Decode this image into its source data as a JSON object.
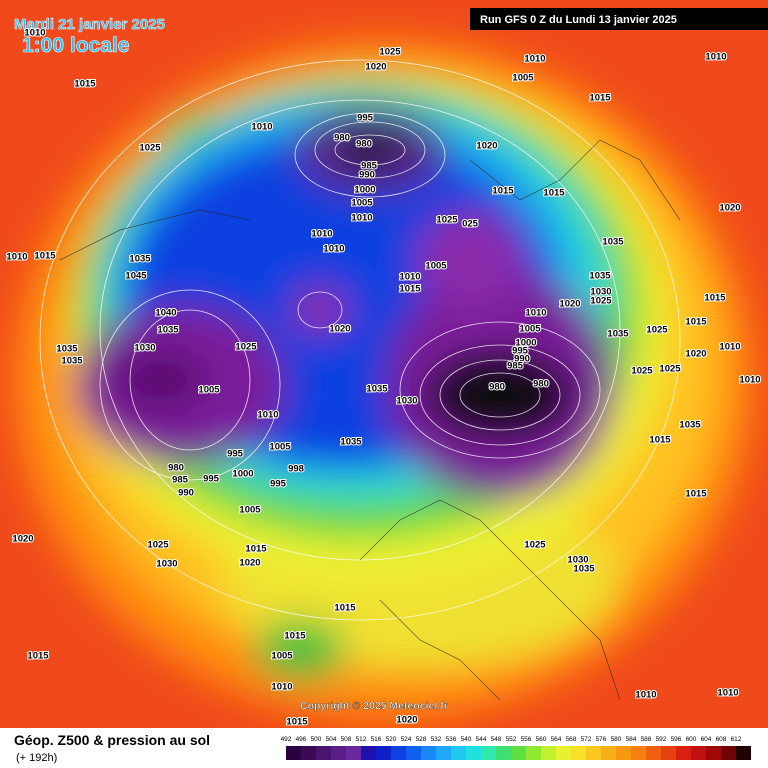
{
  "header": {
    "date": "Mardi 21 janvier 2025",
    "time": "1:00 locale",
    "run": "Run GFS 0 Z du Lundi 13 janvier 2025"
  },
  "map": {
    "pressure_labels": [
      "1010",
      "1015",
      "1025",
      "1010",
      "1025",
      "1020",
      "995",
      "980",
      "980",
      "985",
      "990",
      "1000",
      "1005",
      "1010",
      "1010",
      "1010",
      "1020",
      "1005",
      "1010",
      "1015",
      "1010",
      "1015",
      "1015",
      "1025",
      "025",
      "1005",
      "1010",
      "1015",
      "1035",
      "1035",
      "1030",
      "1025",
      "1020",
      "1020",
      "1015",
      "1015",
      "1025",
      "1035",
      "1020",
      "1010",
      "1025",
      "1025",
      "1010",
      "1010",
      "1005",
      "1000",
      "995",
      "990",
      "985",
      "980",
      "980",
      "1020",
      "1035",
      "1030",
      "1035",
      "1005",
      "1010",
      "1005",
      "1025",
      "1030",
      "1040",
      "1035",
      "1045",
      "1035",
      "1015",
      "1010",
      "1035",
      "1035",
      "995",
      "980",
      "985",
      "990",
      "995",
      "1000",
      "998",
      "995",
      "1005",
      "1020",
      "1025",
      "1030",
      "1015",
      "1020",
      "1015",
      "1015",
      "1005",
      "1010",
      "1015",
      "1025",
      "1030",
      "1035",
      "1015",
      "1015",
      "1035",
      "1010",
      "1010",
      "1015",
      "1020"
    ],
    "copyright": "Copyright © 2025 Meteociel.fr"
  },
  "legend": {
    "title": "Géop. Z500 & pression au sol",
    "lead": "(+ 192h)",
    "scale": [
      492,
      496,
      500,
      504,
      508,
      512,
      516,
      520,
      524,
      528,
      532,
      536,
      540,
      544,
      548,
      552,
      556,
      560,
      564,
      568,
      572,
      576,
      580,
      584,
      588,
      592,
      596,
      600,
      604,
      608,
      612
    ]
  }
}
